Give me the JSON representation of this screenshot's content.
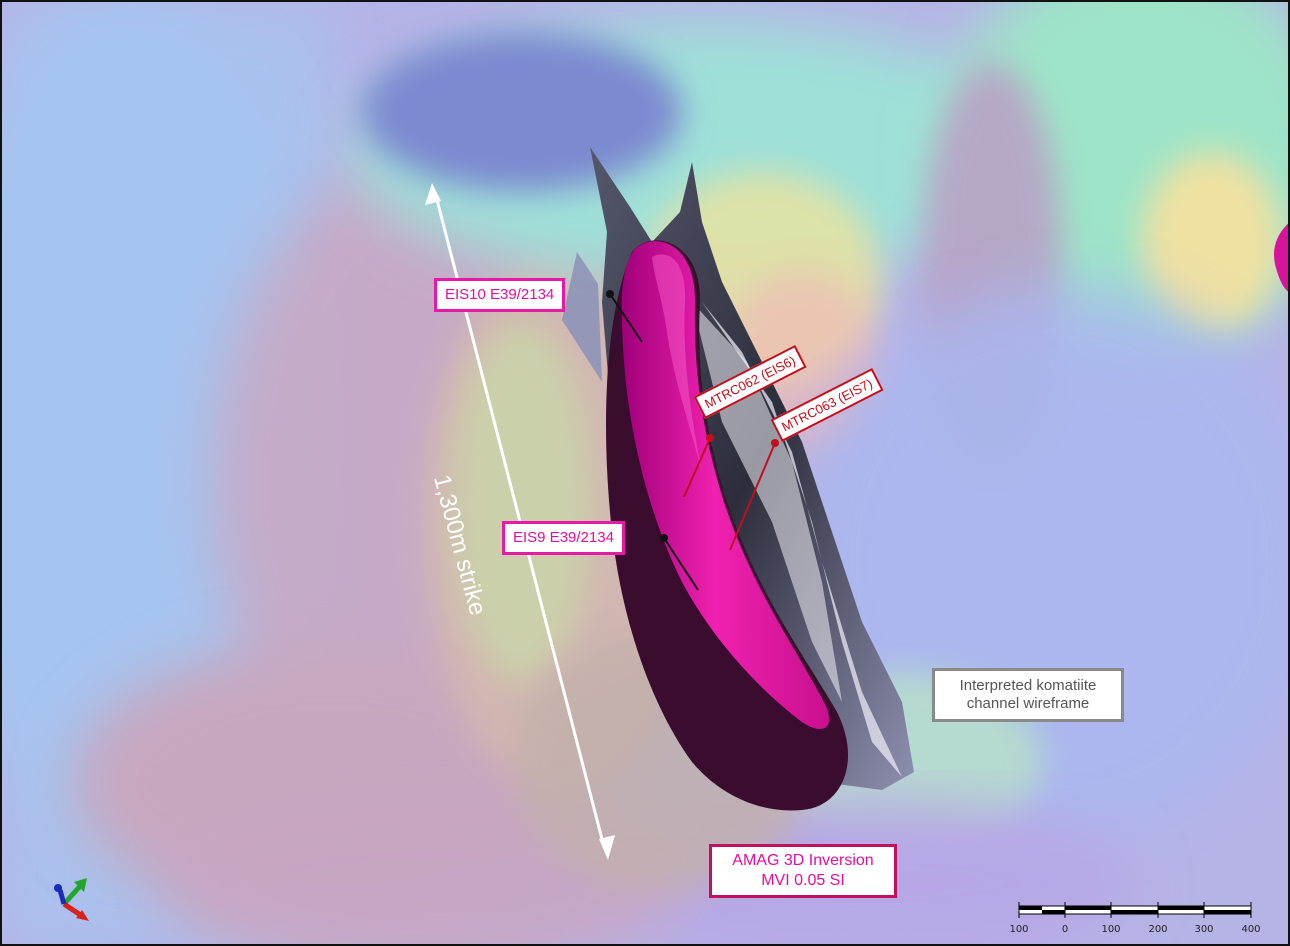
{
  "map": {
    "strike_annotation": "1,300m strike",
    "labels": {
      "eis10": "EIS10 E39/2134",
      "eis9": "EIS9 E39/2134",
      "mtrc062": "MTRC062 (EIS6)",
      "mtrc063": "MTRC063 (EIS7)",
      "wireframe_line1": "Interpreted komatiite",
      "wireframe_line2": "channel wireframe",
      "amag_line1": "AMAG 3D Inversion",
      "amag_line2": "MVI 0.05 SI"
    },
    "scale_bar": {
      "ticks": [
        "100",
        "0",
        "100",
        "200",
        "300",
        "400"
      ]
    },
    "colors": {
      "magenta_body": "#e81aa8",
      "wireframe": "#3b3c4c",
      "drillhole_red": "#c20f1c",
      "label_magenta": "#e51aa6"
    },
    "axis_widget_icon": "xyz-axes-icon"
  }
}
